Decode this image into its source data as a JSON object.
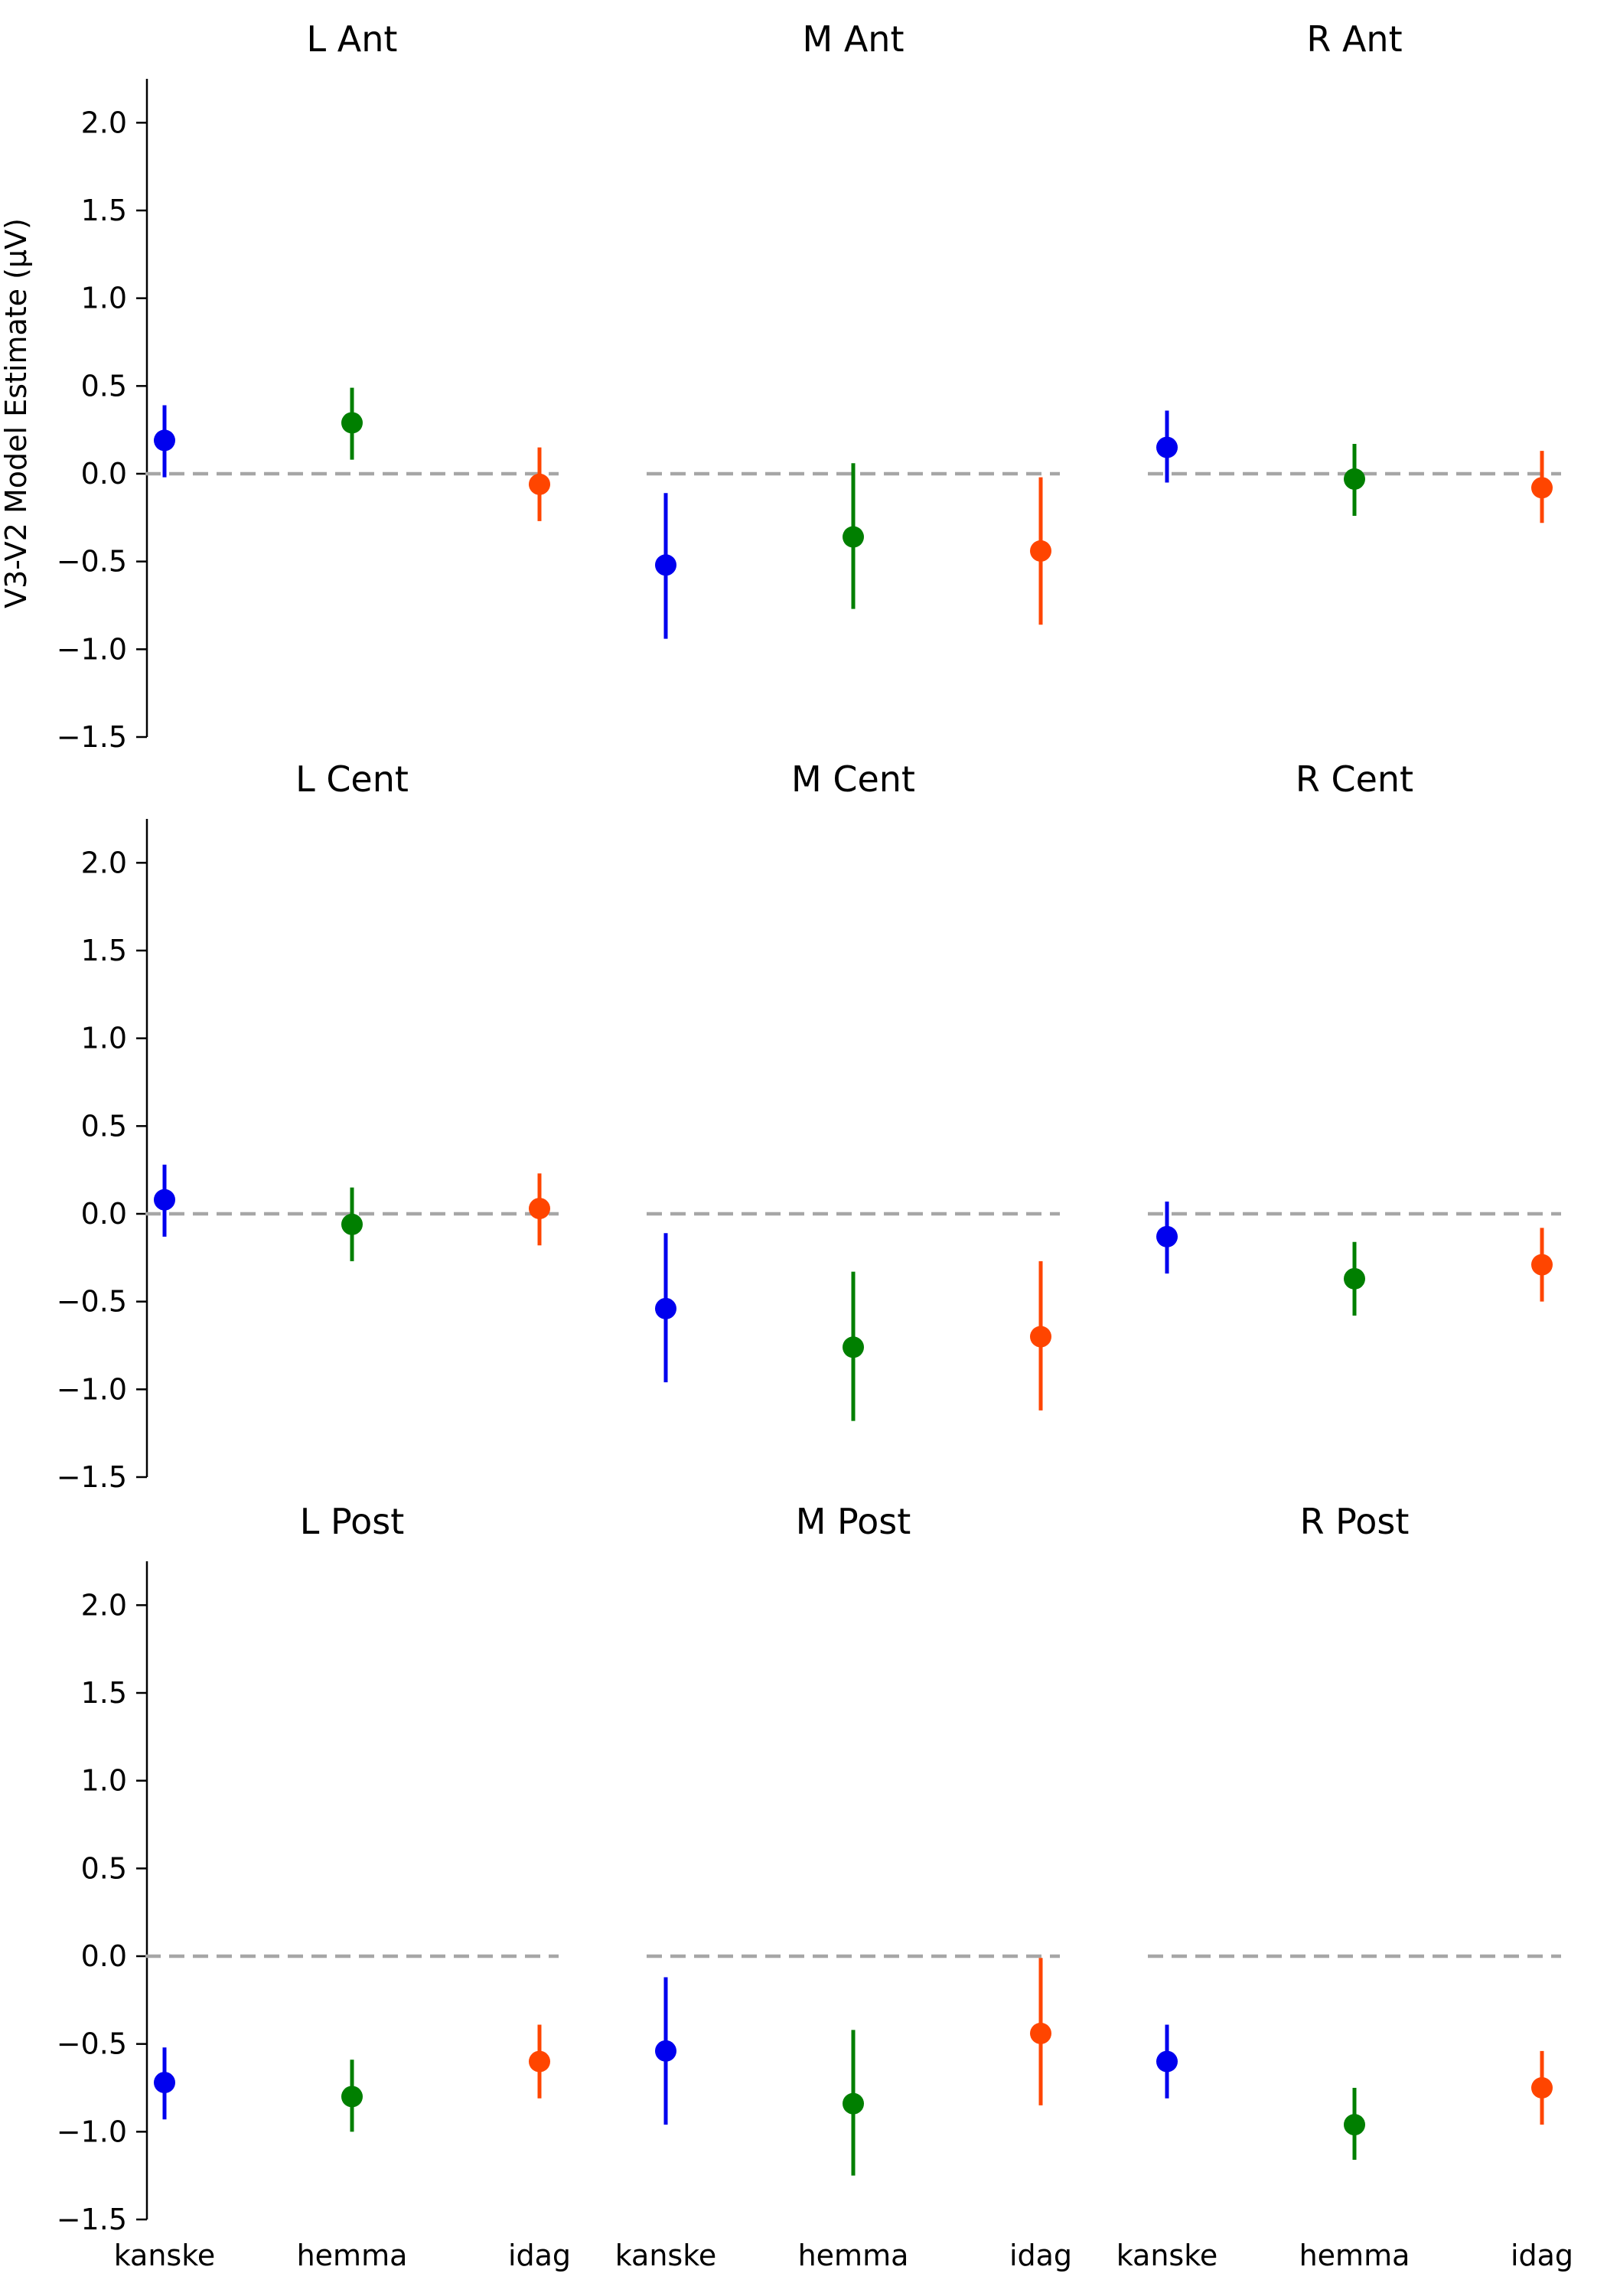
{
  "chart_data": {
    "type": "scatter",
    "ylabel": "V3-V2 Model Estimate (μV)",
    "ylim": [
      -1.5,
      2.25
    ],
    "yticks": [
      -1.5,
      -1.0,
      -0.5,
      0.0,
      0.5,
      1.0,
      1.5,
      2.0
    ],
    "ytick_labels": [
      "−1.5",
      "−1.0",
      "−0.5",
      "0.0",
      "0.5",
      "1.0",
      "1.5",
      "2.0"
    ],
    "categories": [
      "kanske",
      "hemma",
      "idag"
    ],
    "category_colors": [
      "#0000ee",
      "#007f00",
      "#ff4500"
    ],
    "reference_line": {
      "y": 0.0,
      "style": "dashed",
      "color": "#a6a6a6"
    },
    "grid": false,
    "panels": [
      {
        "title": "L Ant",
        "points": [
          {
            "category": "kanske",
            "estimate": 0.19,
            "lower": -0.02,
            "upper": 0.39
          },
          {
            "category": "hemma",
            "estimate": 0.29,
            "lower": 0.08,
            "upper": 0.49
          },
          {
            "category": "idag",
            "estimate": -0.06,
            "lower": -0.27,
            "upper": 0.15
          }
        ]
      },
      {
        "title": "M Ant",
        "points": [
          {
            "category": "kanske",
            "estimate": -0.52,
            "lower": -0.94,
            "upper": -0.11
          },
          {
            "category": "hemma",
            "estimate": -0.36,
            "lower": -0.77,
            "upper": 0.06
          },
          {
            "category": "idag",
            "estimate": -0.44,
            "lower": -0.86,
            "upper": -0.02
          }
        ]
      },
      {
        "title": "R Ant",
        "points": [
          {
            "category": "kanske",
            "estimate": 0.15,
            "lower": -0.05,
            "upper": 0.36
          },
          {
            "category": "hemma",
            "estimate": -0.03,
            "lower": -0.24,
            "upper": 0.17
          },
          {
            "category": "idag",
            "estimate": -0.08,
            "lower": -0.28,
            "upper": 0.13
          }
        ]
      },
      {
        "title": "L Cent",
        "points": [
          {
            "category": "kanske",
            "estimate": 0.08,
            "lower": -0.13,
            "upper": 0.28
          },
          {
            "category": "hemma",
            "estimate": -0.06,
            "lower": -0.27,
            "upper": 0.15
          },
          {
            "category": "idag",
            "estimate": 0.03,
            "lower": -0.18,
            "upper": 0.23
          }
        ]
      },
      {
        "title": "M Cent",
        "points": [
          {
            "category": "kanske",
            "estimate": -0.54,
            "lower": -0.96,
            "upper": -0.11
          },
          {
            "category": "hemma",
            "estimate": -0.76,
            "lower": -1.18,
            "upper": -0.33
          },
          {
            "category": "idag",
            "estimate": -0.7,
            "lower": -1.12,
            "upper": -0.27
          }
        ]
      },
      {
        "title": "R Cent",
        "points": [
          {
            "category": "kanske",
            "estimate": -0.13,
            "lower": -0.34,
            "upper": 0.07
          },
          {
            "category": "hemma",
            "estimate": -0.37,
            "lower": -0.58,
            "upper": -0.16
          },
          {
            "category": "idag",
            "estimate": -0.29,
            "lower": -0.5,
            "upper": -0.08
          }
        ]
      },
      {
        "title": "L Post",
        "points": [
          {
            "category": "kanske",
            "estimate": -0.72,
            "lower": -0.93,
            "upper": -0.52
          },
          {
            "category": "hemma",
            "estimate": -0.8,
            "lower": -1.0,
            "upper": -0.59
          },
          {
            "category": "idag",
            "estimate": -0.6,
            "lower": -0.81,
            "upper": -0.39
          }
        ]
      },
      {
        "title": "M Post",
        "points": [
          {
            "category": "kanske",
            "estimate": -0.54,
            "lower": -0.96,
            "upper": -0.12
          },
          {
            "category": "hemma",
            "estimate": -0.84,
            "lower": -1.25,
            "upper": -0.42
          },
          {
            "category": "idag",
            "estimate": -0.44,
            "lower": -0.85,
            "upper": -0.01
          }
        ]
      },
      {
        "title": "R Post",
        "points": [
          {
            "category": "kanske",
            "estimate": -0.6,
            "lower": -0.81,
            "upper": -0.39
          },
          {
            "category": "hemma",
            "estimate": -0.96,
            "lower": -1.16,
            "upper": -0.75
          },
          {
            "category": "idag",
            "estimate": -0.75,
            "lower": -0.96,
            "upper": -0.54
          }
        ]
      }
    ]
  }
}
